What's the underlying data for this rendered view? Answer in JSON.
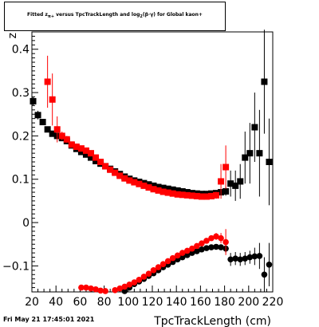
{
  "title": "Fitted z<sub>π+</sub> versus TpcTrackLength and log<sub>2</sub>(β·γ) for Global kaon+",
  "footer": {
    "date": "Fri May 21 17:45:01 2021"
  },
  "chart_data": {
    "type": "scatter",
    "title": "Fitted z versus TpcTrackLength and log(βγ) for Global kaon+",
    "xlabel": "TpcTrackLength (cm)",
    "ylabel": "z",
    "xlim": [
      20,
      220
    ],
    "ylim": [
      -0.16,
      0.44
    ],
    "xticks": [
      20,
      40,
      60,
      80,
      100,
      120,
      140,
      160,
      180,
      200,
      220
    ],
    "xtick_labels": [
      "20",
      "40",
      "60",
      "80",
      "100",
      "120",
      "140",
      "160",
      "180",
      "200",
      "220"
    ],
    "yticks": [
      -0.1,
      0,
      0.1,
      0.2,
      0.3,
      0.4
    ],
    "ytick_labels": [
      "−0.1",
      "0",
      "0.1",
      "0.2",
      "0.3",
      "0.4"
    ],
    "grid": false,
    "series": [
      {
        "color": "#000000",
        "marker": "square",
        "points": [
          [
            21,
            0.28,
            0.01
          ],
          [
            25,
            0.248,
            0.01
          ],
          [
            29,
            0.232,
            0.006
          ],
          [
            33,
            0.215,
            0.006
          ],
          [
            37,
            0.205,
            0.006
          ],
          [
            41,
            0.2,
            0.005
          ],
          [
            45,
            0.195,
            0.004
          ],
          [
            49,
            0.188,
            0.004
          ],
          [
            53,
            0.178,
            0.003
          ],
          [
            57,
            0.17,
            0.003
          ],
          [
            61,
            0.163,
            0.003
          ],
          [
            65,
            0.157,
            0.003
          ],
          [
            69,
            0.15,
            0.003
          ],
          [
            73,
            0.142,
            0.003
          ],
          [
            77,
            0.136,
            0.003
          ],
          [
            81,
            0.13,
            0.003
          ],
          [
            85,
            0.124,
            0.003
          ],
          [
            89,
            0.118,
            0.003
          ],
          [
            93,
            0.112,
            0.003
          ],
          [
            97,
            0.106,
            0.003
          ],
          [
            101,
            0.101,
            0.003
          ],
          [
            105,
            0.097,
            0.003
          ],
          [
            109,
            0.094,
            0.003
          ],
          [
            113,
            0.091,
            0.003
          ],
          [
            117,
            0.088,
            0.003
          ],
          [
            121,
            0.085,
            0.003
          ],
          [
            125,
            0.082,
            0.003
          ],
          [
            129,
            0.08,
            0.003
          ],
          [
            133,
            0.078,
            0.003
          ],
          [
            137,
            0.076,
            0.003
          ],
          [
            141,
            0.074,
            0.003
          ],
          [
            145,
            0.072,
            0.003
          ],
          [
            149,
            0.07,
            0.003
          ],
          [
            153,
            0.068,
            0.003
          ],
          [
            157,
            0.067,
            0.003
          ],
          [
            161,
            0.066,
            0.003
          ],
          [
            165,
            0.066,
            0.004
          ],
          [
            169,
            0.067,
            0.004
          ],
          [
            173,
            0.068,
            0.005
          ],
          [
            177,
            0.07,
            0.006
          ],
          [
            181,
            0.072,
            0.01
          ],
          [
            185,
            0.09,
            0.03
          ],
          [
            189,
            0.085,
            0.035
          ],
          [
            193,
            0.095,
            0.04
          ],
          [
            197,
            0.15,
            0.06
          ],
          [
            201,
            0.16,
            0.07
          ],
          [
            205,
            0.22,
            0.08
          ],
          [
            209,
            0.16,
            0.1
          ],
          [
            213,
            0.325,
            0.12
          ],
          [
            217,
            0.14,
            0.1
          ]
        ]
      },
      {
        "color": "#000000",
        "marker": "circle",
        "points": [
          [
            97,
            -0.158,
            0.003
          ],
          [
            101,
            -0.15,
            0.003
          ],
          [
            105,
            -0.142,
            0.003
          ],
          [
            109,
            -0.136,
            0.003
          ],
          [
            113,
            -0.13,
            0.003
          ],
          [
            117,
            -0.123,
            0.003
          ],
          [
            121,
            -0.117,
            0.003
          ],
          [
            125,
            -0.11,
            0.003
          ],
          [
            129,
            -0.103,
            0.003
          ],
          [
            133,
            -0.097,
            0.003
          ],
          [
            137,
            -0.091,
            0.003
          ],
          [
            141,
            -0.085,
            0.003
          ],
          [
            145,
            -0.08,
            0.003
          ],
          [
            149,
            -0.075,
            0.003
          ],
          [
            153,
            -0.07,
            0.003
          ],
          [
            157,
            -0.066,
            0.003
          ],
          [
            161,
            -0.062,
            0.003
          ],
          [
            165,
            -0.059,
            0.004
          ],
          [
            169,
            -0.057,
            0.004
          ],
          [
            173,
            -0.056,
            0.005
          ],
          [
            177,
            -0.057,
            0.006
          ],
          [
            181,
            -0.06,
            0.01
          ],
          [
            185,
            -0.085,
            0.015
          ],
          [
            189,
            -0.083,
            0.015
          ],
          [
            193,
            -0.085,
            0.015
          ],
          [
            197,
            -0.083,
            0.015
          ],
          [
            201,
            -0.08,
            0.015
          ],
          [
            205,
            -0.078,
            0.02
          ],
          [
            209,
            -0.077,
            0.03
          ],
          [
            213,
            -0.12,
            0.04
          ],
          [
            217,
            -0.097,
            0.05
          ]
        ]
      },
      {
        "color": "#ff0000",
        "marker": "square",
        "points": [
          [
            33,
            0.325,
            0.06
          ],
          [
            37,
            0.284,
            0.06
          ],
          [
            41,
            0.215,
            0.03
          ],
          [
            45,
            0.2,
            0.01
          ],
          [
            49,
            0.192,
            0.008
          ],
          [
            53,
            0.18,
            0.006
          ],
          [
            57,
            0.175,
            0.005
          ],
          [
            61,
            0.171,
            0.004
          ],
          [
            65,
            0.166,
            0.004
          ],
          [
            69,
            0.16,
            0.004
          ],
          [
            73,
            0.15,
            0.004
          ],
          [
            77,
            0.14,
            0.004
          ],
          [
            81,
            0.13,
            0.004
          ],
          [
            85,
            0.122,
            0.004
          ],
          [
            89,
            0.115,
            0.004
          ],
          [
            93,
            0.108,
            0.004
          ],
          [
            97,
            0.102,
            0.004
          ],
          [
            101,
            0.097,
            0.004
          ],
          [
            105,
            0.093,
            0.004
          ],
          [
            109,
            0.089,
            0.004
          ],
          [
            113,
            0.085,
            0.004
          ],
          [
            117,
            0.081,
            0.004
          ],
          [
            121,
            0.077,
            0.004
          ],
          [
            125,
            0.074,
            0.004
          ],
          [
            129,
            0.071,
            0.004
          ],
          [
            133,
            0.069,
            0.004
          ],
          [
            137,
            0.067,
            0.004
          ],
          [
            141,
            0.065,
            0.004
          ],
          [
            145,
            0.064,
            0.004
          ],
          [
            149,
            0.063,
            0.004
          ],
          [
            153,
            0.062,
            0.004
          ],
          [
            157,
            0.061,
            0.004
          ],
          [
            161,
            0.06,
            0.005
          ],
          [
            165,
            0.06,
            0.005
          ],
          [
            169,
            0.061,
            0.006
          ],
          [
            173,
            0.063,
            0.008
          ],
          [
            177,
            0.095,
            0.04
          ],
          [
            181,
            0.128,
            0.05
          ]
        ]
      },
      {
        "color": "#ff0000",
        "marker": "circle",
        "points": [
          [
            61,
            -0.15,
            0.003
          ],
          [
            65,
            -0.15,
            0.003
          ],
          [
            69,
            -0.152,
            0.003
          ],
          [
            73,
            -0.154,
            0.003
          ],
          [
            77,
            -0.157,
            0.003
          ],
          [
            81,
            -0.158,
            0.003
          ],
          [
            89,
            -0.156,
            0.003
          ],
          [
            93,
            -0.152,
            0.003
          ],
          [
            97,
            -0.148,
            0.003
          ],
          [
            101,
            -0.143,
            0.003
          ],
          [
            105,
            -0.138,
            0.003
          ],
          [
            109,
            -0.132,
            0.003
          ],
          [
            113,
            -0.125,
            0.003
          ],
          [
            117,
            -0.118,
            0.003
          ],
          [
            121,
            -0.11,
            0.003
          ],
          [
            125,
            -0.103,
            0.003
          ],
          [
            129,
            -0.096,
            0.003
          ],
          [
            133,
            -0.089,
            0.003
          ],
          [
            137,
            -0.082,
            0.003
          ],
          [
            141,
            -0.076,
            0.003
          ],
          [
            145,
            -0.07,
            0.003
          ],
          [
            149,
            -0.065,
            0.003
          ],
          [
            153,
            -0.06,
            0.003
          ],
          [
            157,
            -0.054,
            0.004
          ],
          [
            161,
            -0.048,
            0.004
          ],
          [
            165,
            -0.042,
            0.005
          ],
          [
            169,
            -0.036,
            0.006
          ],
          [
            173,
            -0.032,
            0.008
          ],
          [
            177,
            -0.036,
            0.012
          ],
          [
            181,
            -0.045,
            0.03
          ]
        ]
      }
    ]
  }
}
